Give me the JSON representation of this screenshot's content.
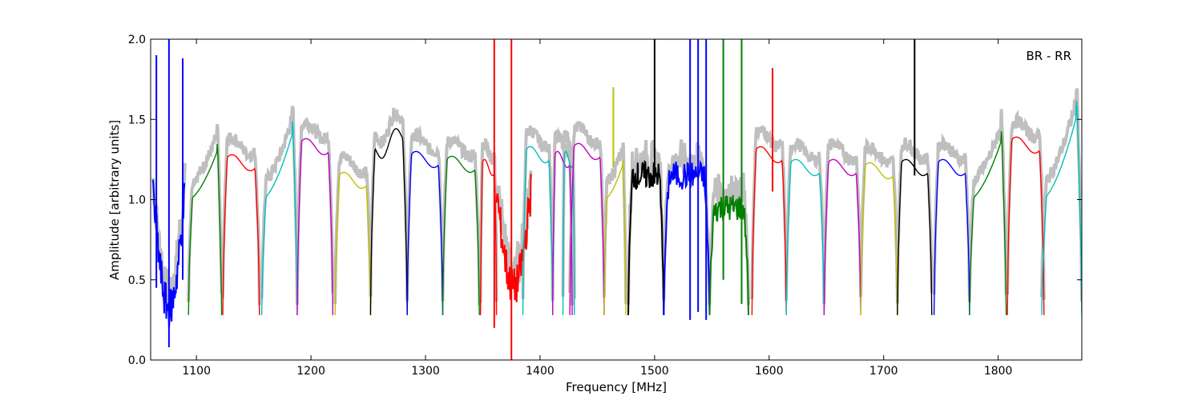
{
  "chart_data": {
    "type": "line",
    "title": "",
    "xlabel": "Frequency [MHz]",
    "ylabel": "Amplitude [arbitrary units]",
    "xlim": [
      1060,
      1873
    ],
    "ylim": [
      0.0,
      2.0
    ],
    "x_ticks": [
      1100,
      1200,
      1300,
      1400,
      1500,
      1600,
      1700,
      1800
    ],
    "x_tick_labels": [
      "1100",
      "1200",
      "1300",
      "1400",
      "1500",
      "1600",
      "1700",
      "1800"
    ],
    "y_ticks": [
      0.0,
      0.5,
      1.0,
      1.5,
      2.0
    ],
    "y_tick_labels": [
      "0.0",
      "0.5",
      "1.0",
      "1.5",
      "2.0"
    ],
    "annotation": "BR - RR",
    "grid": false,
    "colors": {
      "background_trace": "#bfbfbf",
      "blue": "#0000ff",
      "green": "#008000",
      "red": "#ff0000",
      "cyan": "#00bfbf",
      "magenta": "#bf00bf",
      "olive": "#bfbf00",
      "black": "#000000"
    },
    "bands": [
      {
        "color": "blue",
        "start": 1062,
        "end": 1090,
        "style": "noisy-dip",
        "low": 0.32,
        "high": 1.05
      },
      {
        "color": "green",
        "start": 1093,
        "end": 1122,
        "style": "bump",
        "peak": 1.38
      },
      {
        "color": "red",
        "start": 1123,
        "end": 1155,
        "style": "flat",
        "level": 1.23
      },
      {
        "color": "cyan",
        "start": 1157,
        "end": 1188,
        "style": "bump",
        "peak": 1.52
      },
      {
        "color": "magenta",
        "start": 1188,
        "end": 1219,
        "style": "flat",
        "level": 1.33
      },
      {
        "color": "olive",
        "start": 1221,
        "end": 1252,
        "style": "flat",
        "level": 1.12
      },
      {
        "color": "black",
        "start": 1252,
        "end": 1284,
        "style": "double",
        "level": 1.35
      },
      {
        "color": "blue",
        "start": 1284,
        "end": 1315,
        "style": "flat",
        "level": 1.25
      },
      {
        "color": "green",
        "start": 1315,
        "end": 1347,
        "style": "flat",
        "level": 1.22
      },
      {
        "color": "red",
        "start": 1348,
        "end": 1362,
        "style": "flat",
        "level": 1.2
      },
      {
        "color": "red",
        "start": 1362,
        "end": 1392,
        "style": "noisy-dip",
        "low": 0.45,
        "high": 1.05
      },
      {
        "color": "cyan",
        "start": 1385,
        "end": 1411,
        "style": "flat",
        "level": 1.28
      },
      {
        "color": "magenta",
        "start": 1411,
        "end": 1428,
        "style": "flat",
        "level": 1.25
      },
      {
        "color": "cyan",
        "start": 1420,
        "end": 1430,
        "style": "flat",
        "level": 1.25
      },
      {
        "color": "magenta",
        "start": 1426,
        "end": 1456,
        "style": "flat",
        "level": 1.3
      },
      {
        "color": "olive",
        "start": 1456,
        "end": 1475,
        "style": "bump",
        "peak": 1.28
      },
      {
        "color": "black",
        "start": 1477,
        "end": 1508,
        "style": "noisy-flat",
        "level": 1.15
      },
      {
        "color": "blue",
        "start": 1508,
        "end": 1548,
        "style": "noisy-flat",
        "level": 1.15
      },
      {
        "color": "green",
        "start": 1548,
        "end": 1582,
        "style": "noisy-flat",
        "level": 0.95
      },
      {
        "color": "red",
        "start": 1585,
        "end": 1615,
        "style": "flat",
        "level": 1.28
      },
      {
        "color": "cyan",
        "start": 1615,
        "end": 1648,
        "style": "flat",
        "level": 1.2
      },
      {
        "color": "magenta",
        "start": 1648,
        "end": 1680,
        "style": "flat",
        "level": 1.2
      },
      {
        "color": "olive",
        "start": 1680,
        "end": 1712,
        "style": "flat",
        "level": 1.18
      },
      {
        "color": "black",
        "start": 1712,
        "end": 1742,
        "style": "flat",
        "level": 1.2
      },
      {
        "color": "blue",
        "start": 1744,
        "end": 1775,
        "style": "flat",
        "level": 1.2
      },
      {
        "color": "green",
        "start": 1775,
        "end": 1807,
        "style": "bump",
        "peak": 1.46
      },
      {
        "color": "red",
        "start": 1808,
        "end": 1840,
        "style": "flat",
        "level": 1.34
      },
      {
        "color": "cyan",
        "start": 1838,
        "end": 1873,
        "style": "bump",
        "peak": 1.65
      }
    ],
    "spikes": [
      {
        "color": "blue",
        "x": 1076,
        "top": 2.0,
        "bottom": 0.08
      },
      {
        "color": "blue",
        "x": 1065,
        "top": 1.9,
        "bottom": 0.45
      },
      {
        "color": "blue",
        "x": 1088,
        "top": 1.88,
        "bottom": 0.5
      },
      {
        "color": "red",
        "x": 1360,
        "top": 2.0,
        "bottom": 0.2
      },
      {
        "color": "red",
        "x": 1375,
        "top": 2.0,
        "bottom": 0.0
      },
      {
        "color": "black",
        "x": 1500,
        "top": 2.0,
        "bottom": 1.1
      },
      {
        "color": "black",
        "x": 1727,
        "top": 2.0,
        "bottom": 1.15
      },
      {
        "color": "blue",
        "x": 1531,
        "top": 2.0,
        "bottom": 0.25
      },
      {
        "color": "blue",
        "x": 1538,
        "top": 2.0,
        "bottom": 0.3
      },
      {
        "color": "blue",
        "x": 1545,
        "top": 2.0,
        "bottom": 0.25
      },
      {
        "color": "green",
        "x": 1560,
        "top": 2.0,
        "bottom": 0.5
      },
      {
        "color": "green",
        "x": 1576,
        "top": 2.0,
        "bottom": 0.35
      },
      {
        "color": "red",
        "x": 1603,
        "top": 1.82,
        "bottom": 1.05
      },
      {
        "color": "olive",
        "x": 1464,
        "top": 1.7,
        "bottom": 1.2
      }
    ]
  }
}
